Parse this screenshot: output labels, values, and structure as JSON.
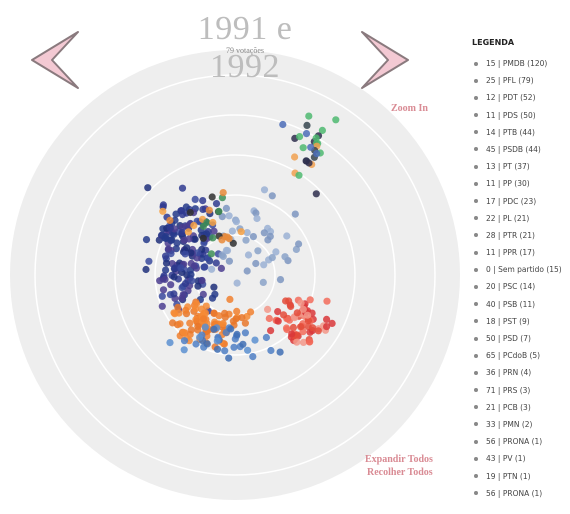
{
  "header": {
    "title": "1991 e 1992",
    "subtitle": "79 votações"
  },
  "controls": {
    "prev_icon": "chevron-left-icon",
    "next_icon": "chevron-right-icon",
    "zoom_in": "Zoom In",
    "expand_all": "Expandir Todos",
    "collapse_all": "Recolher Todos"
  },
  "legend": {
    "title": "LEGENDA",
    "items": [
      "15 | PMDB (120)",
      "25 | PFL (79)",
      "12 | PDT (52)",
      "11 | PDS (50)",
      "14 | PTB (44)",
      "45 | PSDB (44)",
      "13 | PT (37)",
      "11 | PP (30)",
      "17 | PDC (23)",
      "22 | PL (21)",
      "28 | PTR (21)",
      "11 | PPR (17)",
      "0 | Sem partido (15)",
      "20 | PSC (14)",
      "40 | PSB (11)",
      "18 | PST (9)",
      "50 | PSD (7)",
      "65 | PCdoB (5)",
      "36 | PRN (4)",
      "71 | PRS (3)",
      "21 | PCB (3)",
      "33 | PMN (2)",
      "56 | PRONA (1)",
      "43 | PV (1)",
      "19 | PTN (1)",
      "56 | PRONA (1)"
    ]
  },
  "colors": {
    "arrow_fill": "#f3c9d3",
    "arrow_stroke": "#8a7a7e",
    "link": "#d98b94",
    "title": "#bdbdbd",
    "plot_background": "#eeeeee",
    "rings": "#ffffff"
  }
}
